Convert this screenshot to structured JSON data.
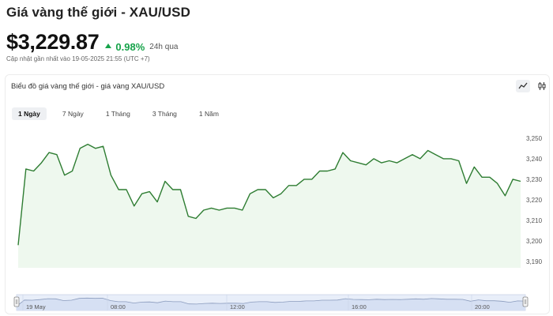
{
  "header": {
    "title": "Giá vàng thế giới - XAU/USD",
    "price": "$3,229.87",
    "change_pct": "0.98%",
    "change_period": "24h qua",
    "updated": "Cập nhật gần nhất vào 19-05-2025 21:55 (UTC +7)",
    "accent_color": "#16a34a"
  },
  "card": {
    "title": "Biểu đồ giá vàng thế giới - giá vàng XAU/USD",
    "view_icons": [
      "line-chart-icon",
      "candlestick-icon"
    ]
  },
  "tabs": [
    {
      "label": "1 Ngày",
      "active": true
    },
    {
      "label": "7 Ngày",
      "active": false
    },
    {
      "label": "1 Tháng",
      "active": false
    },
    {
      "label": "3 Tháng",
      "active": false
    },
    {
      "label": "1 Năm",
      "active": false
    }
  ],
  "chart_data": {
    "type": "area",
    "title": "",
    "xlabel": "",
    "ylabel": "",
    "y_ticks": [
      3190,
      3200,
      3210,
      3220,
      3230,
      3240,
      3250
    ],
    "ylim": [
      3187,
      3253
    ],
    "y_axis_position": "right",
    "grid": false,
    "line_color": "#2e7d32",
    "fill_color": "#eef8ee",
    "values": [
      3198,
      3235,
      3234,
      3238,
      3243,
      3242,
      3232,
      3234,
      3245,
      3247,
      3245,
      3246,
      3232,
      3225,
      3225,
      3217,
      3223,
      3224,
      3219,
      3229,
      3225,
      3225,
      3212,
      3211,
      3215,
      3216,
      3215,
      3216,
      3216,
      3215,
      3223,
      3225,
      3225,
      3221,
      3223,
      3227,
      3227,
      3230,
      3230,
      3234,
      3234,
      3235,
      3243,
      3239,
      3238,
      3237,
      3240,
      3238,
      3239,
      3238,
      3240,
      3242,
      3240,
      3244,
      3242,
      3240,
      3240,
      3239,
      3228,
      3236,
      3231,
      3231,
      3228,
      3222,
      3230,
      3229
    ],
    "navigator": {
      "x_labels": [
        "19 May",
        "08:00",
        "12:00",
        "16:00",
        "20:00"
      ]
    }
  }
}
